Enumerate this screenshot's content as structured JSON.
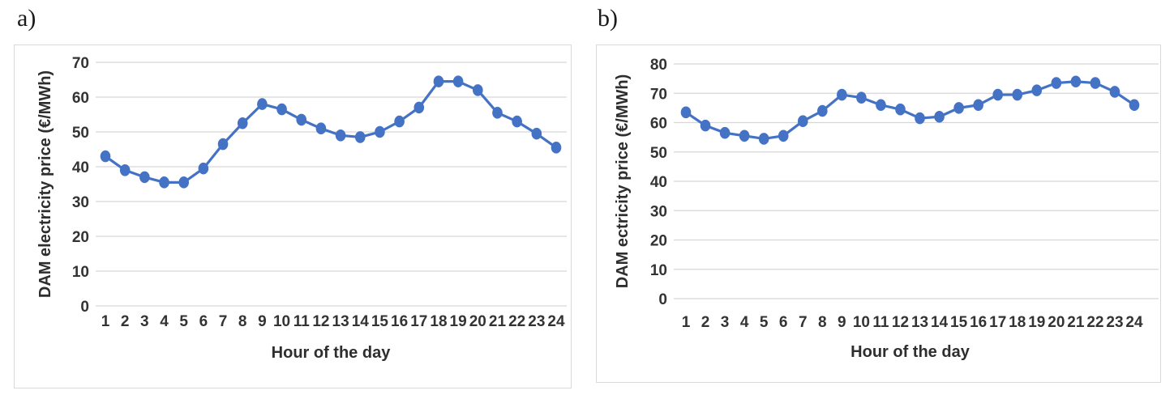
{
  "panels": [
    {
      "label": "a)"
    },
    {
      "label": "b)"
    }
  ],
  "chart_data": [
    {
      "type": "line",
      "panel": "a",
      "title": "",
      "xlabel": "Hour of the day",
      "ylabel": "DAM electricity price (€/MWh)",
      "x": [
        1,
        2,
        3,
        4,
        5,
        6,
        7,
        8,
        9,
        10,
        11,
        12,
        13,
        14,
        15,
        16,
        17,
        18,
        19,
        20,
        21,
        22,
        23,
        24
      ],
      "values": [
        43,
        39,
        37,
        35.5,
        35.5,
        39.5,
        46.5,
        52.5,
        58,
        56.5,
        53.5,
        51,
        49,
        48.5,
        50,
        53,
        57,
        64.5,
        64.5,
        62,
        55.5,
        53,
        49.5,
        45.5
      ],
      "ylim": [
        0,
        70
      ],
      "yticks": [
        0,
        10,
        20,
        30,
        40,
        50,
        60,
        70
      ],
      "grid": "horizontal",
      "legend_position": "none",
      "line_color": "#4472C4",
      "marker": "circle",
      "marker_color": "#4472C4"
    },
    {
      "type": "line",
      "panel": "b",
      "title": "",
      "xlabel": "Hour of the day",
      "ylabel": "DAM ectricity price (€/MWh)",
      "x": [
        1,
        2,
        3,
        4,
        5,
        6,
        7,
        8,
        9,
        10,
        11,
        12,
        13,
        14,
        15,
        16,
        17,
        18,
        19,
        20,
        21,
        22,
        23,
        24
      ],
      "values": [
        63.5,
        59,
        56.5,
        55.5,
        54.5,
        55.5,
        60.5,
        64,
        69.5,
        68.5,
        66,
        64.5,
        61.5,
        62,
        65,
        66,
        69.5,
        69.5,
        71,
        73.5,
        74,
        73.5,
        70.5,
        66
      ],
      "ylim": [
        0,
        80
      ],
      "yticks": [
        0,
        10,
        20,
        30,
        40,
        50,
        60,
        70,
        80
      ],
      "grid": "horizontal",
      "legend_position": "none",
      "line_color": "#4472C4",
      "marker": "circle",
      "marker_color": "#4472C4"
    }
  ]
}
